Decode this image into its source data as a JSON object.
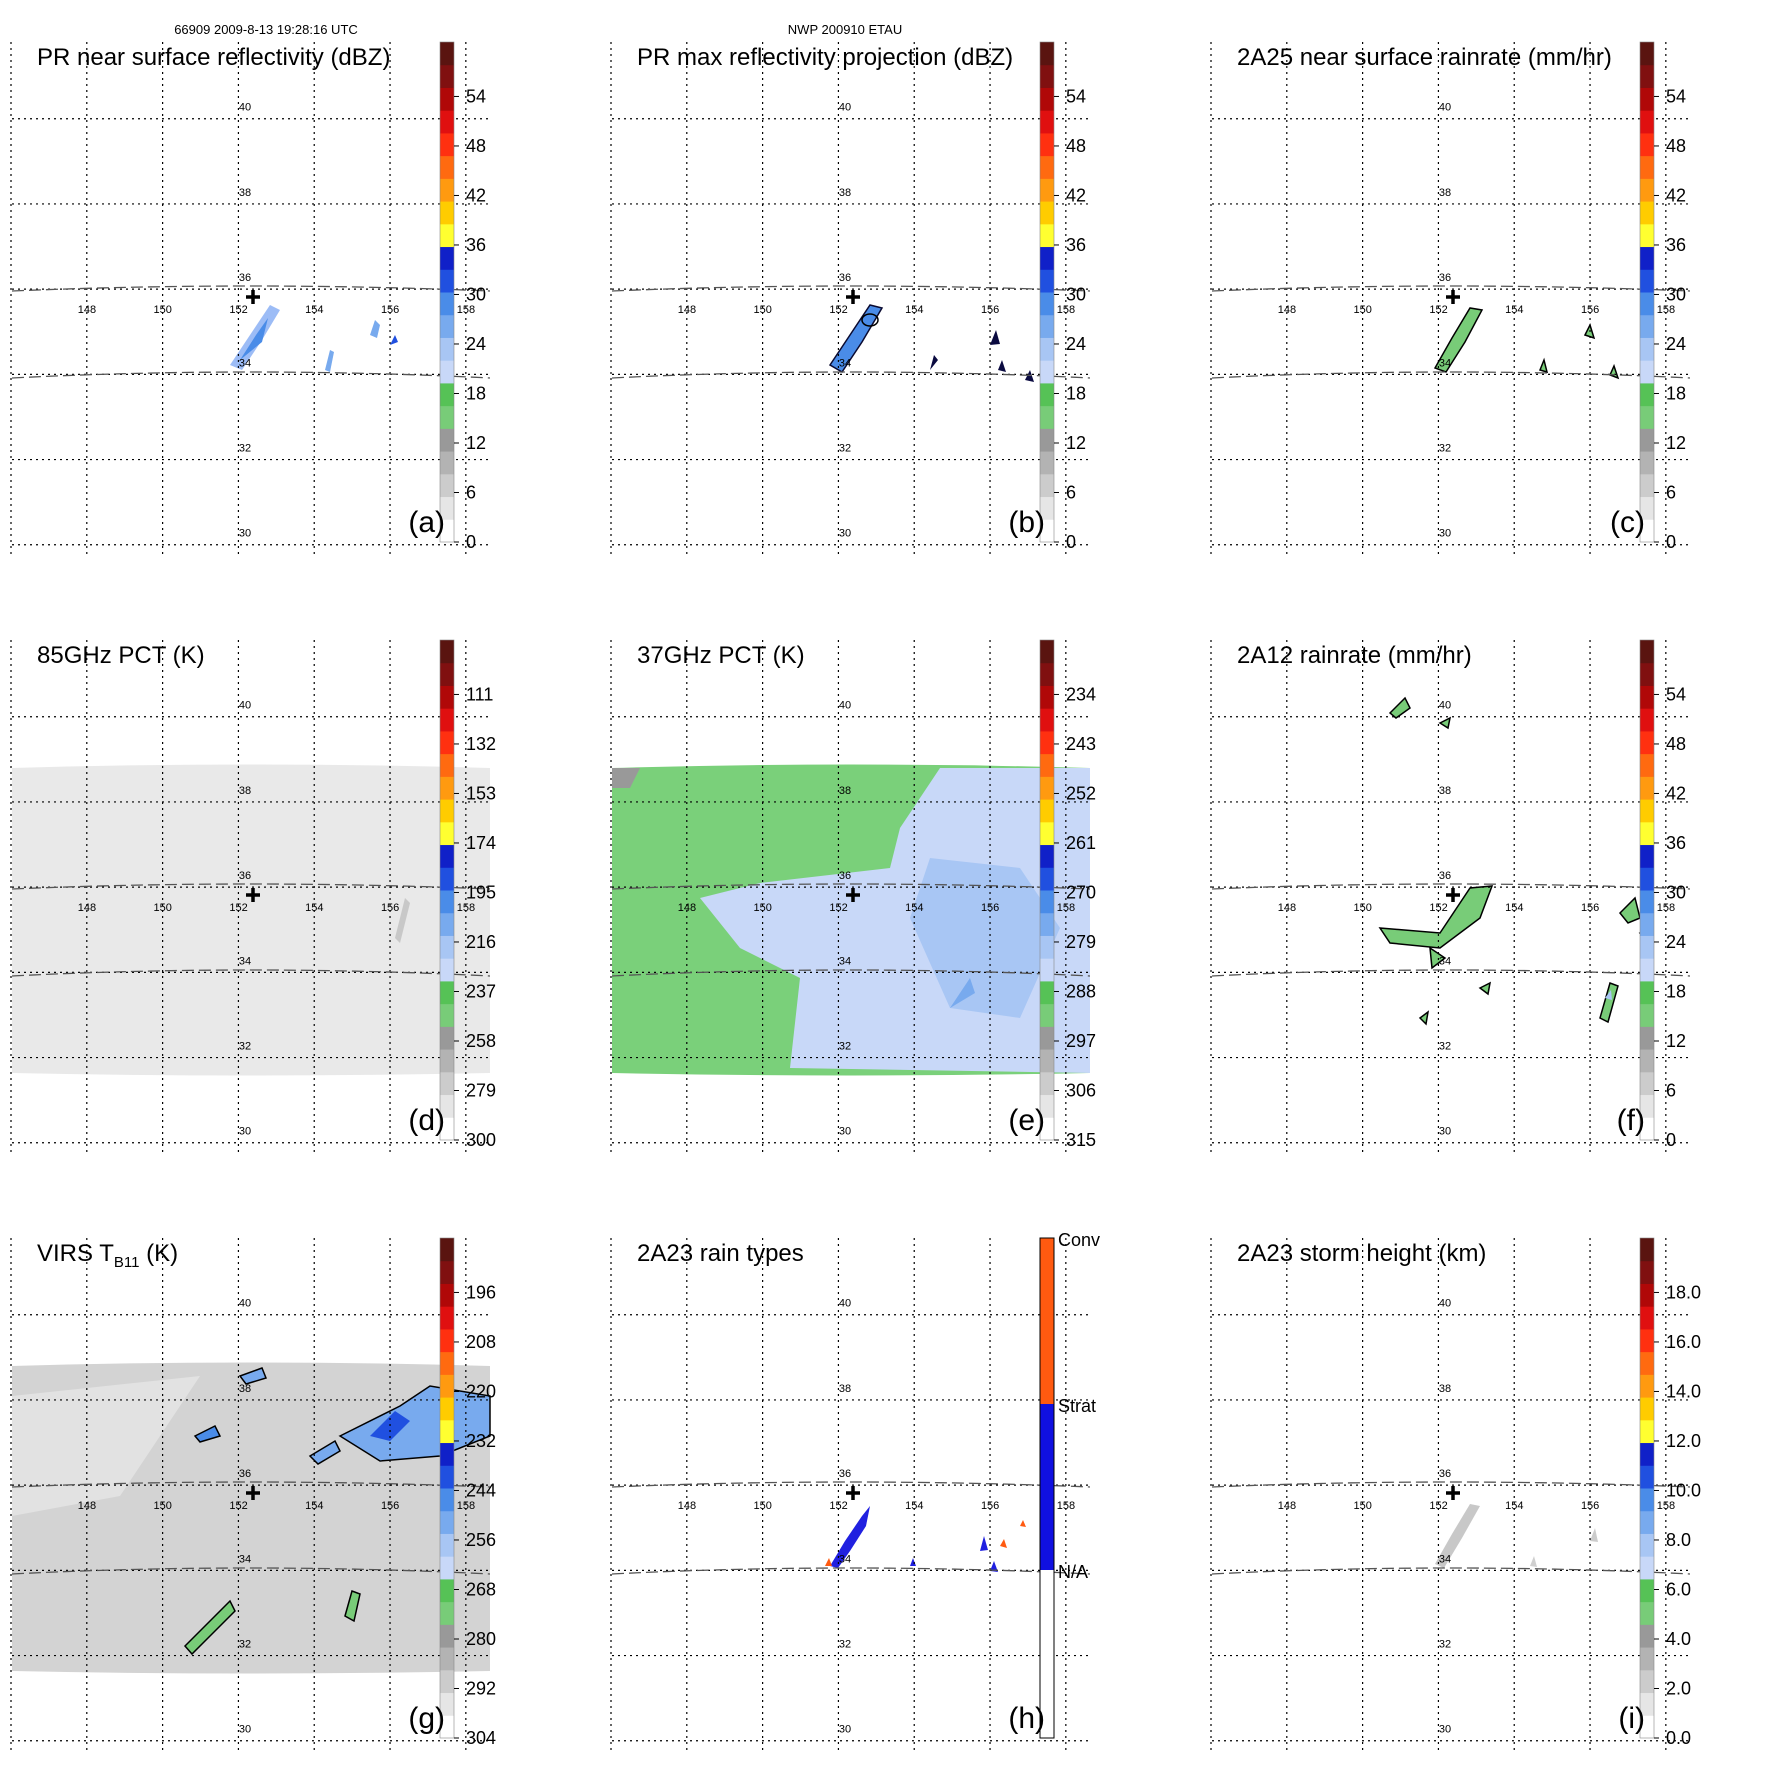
{
  "header": {
    "left": "66909 2009-8-13 19:28:16 UTC",
    "center": "NWP 200910 ETAU"
  },
  "chart_data": [
    {
      "type": "heatmap",
      "id": "a",
      "letter": "(a)",
      "title": "PR near surface reflectivity (dBZ)",
      "lon_ticks": [
        148,
        150,
        152,
        154,
        156,
        158
      ],
      "lat_ticks": [
        30,
        32,
        34,
        36,
        38,
        40
      ],
      "colorbar": {
        "labels": [
          "0",
          "6",
          "12",
          "18",
          "24",
          "30",
          "36",
          "42",
          "48",
          "54"
        ]
      }
    },
    {
      "type": "heatmap",
      "id": "b",
      "letter": "(b)",
      "title": "PR max reflectivity projection (dBZ)",
      "lon_ticks": [
        148,
        150,
        152,
        154,
        156,
        158
      ],
      "lat_ticks": [
        30,
        32,
        34,
        36,
        38,
        40
      ],
      "colorbar": {
        "labels": [
          "0",
          "6",
          "12",
          "18",
          "24",
          "30",
          "36",
          "42",
          "48",
          "54"
        ]
      }
    },
    {
      "type": "heatmap",
      "id": "c",
      "letter": "(c)",
      "title": "2A25 near surface rainrate (mm/hr)",
      "lon_ticks": [
        148,
        150,
        152,
        154,
        156,
        158
      ],
      "lat_ticks": [
        30,
        32,
        34,
        36,
        38,
        40
      ],
      "colorbar": {
        "labels": [
          "0",
          "6",
          "12",
          "18",
          "24",
          "30",
          "36",
          "42",
          "48",
          "54"
        ]
      }
    },
    {
      "type": "heatmap",
      "id": "d",
      "letter": "(d)",
      "title": "85GHz PCT (K)",
      "lon_ticks": [
        148,
        150,
        152,
        154,
        156,
        158
      ],
      "lat_ticks": [
        30,
        32,
        34,
        36,
        38,
        40
      ],
      "colorbar": {
        "labels": [
          "300",
          "279",
          "258",
          "237",
          "216",
          "195",
          "174",
          "153",
          "132",
          "111"
        ]
      }
    },
    {
      "type": "heatmap",
      "id": "e",
      "letter": "(e)",
      "title": "37GHz PCT (K)",
      "lon_ticks": [
        148,
        150,
        152,
        154,
        156,
        158
      ],
      "lat_ticks": [
        30,
        32,
        34,
        36,
        38,
        40
      ],
      "colorbar": {
        "labels": [
          "315",
          "306",
          "297",
          "288",
          "279",
          "270",
          "261",
          "252",
          "243",
          "234"
        ]
      }
    },
    {
      "type": "heatmap",
      "id": "f",
      "letter": "(f)",
      "title": "2A12 rainrate (mm/hr)",
      "lon_ticks": [
        148,
        150,
        152,
        154,
        156,
        158
      ],
      "lat_ticks": [
        30,
        32,
        34,
        36,
        38,
        40
      ],
      "colorbar": {
        "labels": [
          "0",
          "6",
          "12",
          "18",
          "24",
          "30",
          "36",
          "42",
          "48",
          "54"
        ]
      }
    },
    {
      "type": "heatmap",
      "id": "g",
      "letter": "(g)",
      "title": "VIRS T",
      "title_sub": "B11",
      "title_after": " (K)",
      "lon_ticks": [
        148,
        150,
        152,
        154,
        156,
        158
      ],
      "lat_ticks": [
        30,
        32,
        34,
        36,
        38,
        40
      ],
      "colorbar": {
        "labels": [
          "304",
          "292",
          "280",
          "268",
          "256",
          "244",
          "232",
          "220",
          "208",
          "196"
        ]
      }
    },
    {
      "type": "heatmap",
      "id": "h",
      "letter": "(h)",
      "title": "2A23 rain types",
      "lon_ticks": [
        148,
        150,
        152,
        154,
        156,
        158
      ],
      "lat_ticks": [
        30,
        32,
        34,
        36,
        38,
        40
      ],
      "colorbar": {
        "categorical": true,
        "labels": [
          "N/A",
          "Strat",
          "Conv"
        ]
      }
    },
    {
      "type": "heatmap",
      "id": "i",
      "letter": "(i)",
      "title": "2A23 storm height (km)",
      "lon_ticks": [
        148,
        150,
        152,
        154,
        156,
        158
      ],
      "lat_ticks": [
        30,
        32,
        34,
        36,
        38,
        40
      ],
      "colorbar": {
        "labels": [
          "0.0",
          "2.0",
          "4.0",
          "6.0",
          "8.0",
          "10.0",
          "12.0",
          "14.0",
          "16.0",
          "18.0"
        ]
      }
    }
  ]
}
